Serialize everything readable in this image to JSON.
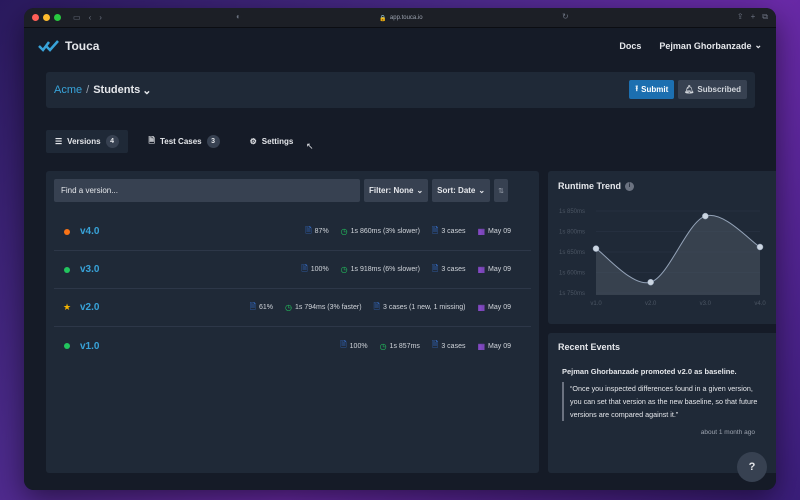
{
  "browser": {
    "url": "app.touca.io"
  },
  "navbar": {
    "brand": "Touca",
    "docs": "Docs",
    "user": "Pejman Ghorbanzade"
  },
  "header": {
    "team": "Acme",
    "separator": "/",
    "suite": "Students",
    "submit": "Submit",
    "subscribed": "Subscribed"
  },
  "tabs": [
    {
      "label": "Versions",
      "count": "4"
    },
    {
      "label": "Test Cases",
      "count": "3"
    },
    {
      "label": "Settings"
    }
  ],
  "filters": {
    "placeholder": "Find a version...",
    "filter": "Filter: None",
    "sort": "Sort: Date"
  },
  "versions": [
    {
      "name": "v4.0",
      "score": "87%",
      "runtime": "1s 860ms (3% slower)",
      "cases": "3 cases",
      "date": "May 09",
      "status": "orange"
    },
    {
      "name": "v3.0",
      "score": "100%",
      "runtime": "1s 918ms (6% slower)",
      "cases": "3 cases",
      "date": "May 09",
      "status": "green"
    },
    {
      "name": "v2.0",
      "score": "61%",
      "runtime": "1s 794ms (3% faster)",
      "cases": "3 cases (1 new, 1 missing)",
      "date": "May 09",
      "status": "star"
    },
    {
      "name": "v1.0",
      "score": "100%",
      "runtime": "1s 857ms",
      "cases": "3 cases",
      "date": "May 09",
      "status": "green"
    }
  ],
  "trend": {
    "title": "Runtime Trend",
    "chart_data": {
      "type": "area",
      "categories": [
        "v1.0",
        "v2.0",
        "v3.0",
        "v4.0"
      ],
      "values": [
        1857,
        1794,
        1918,
        1860
      ],
      "ytick_labels": [
        "1s 850ms",
        "1s 800ms",
        "1s 650ms",
        "1s 600ms",
        "1s 750ms"
      ]
    }
  },
  "events": {
    "title": "Recent Events",
    "who": "Pejman Ghorbanzade promoted v2.0 as baseline.",
    "quote": "“Once you inspected differences found in a given version, you can set that version as the new baseline, so that future versions are compared against it.”",
    "time": "about 1 month ago"
  },
  "help": "?",
  "colors": {
    "accent": "#38a3d9",
    "submit": "#1c6fb0",
    "orange": "#f97316",
    "green": "#22c55e",
    "star": "#f5b400"
  }
}
